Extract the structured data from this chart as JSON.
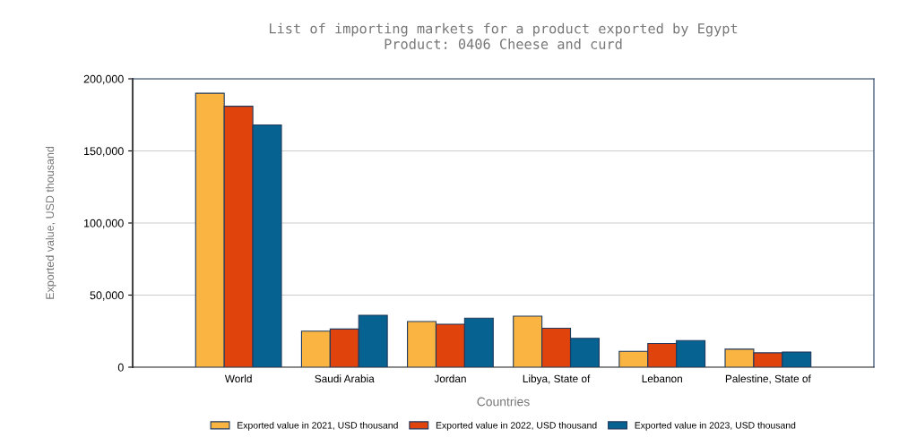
{
  "chart_data": {
    "type": "bar",
    "title": "List of importing markets for a product exported by Egypt\nProduct: 0406 Cheese and curd",
    "xlabel": "Countries",
    "ylabel": "Exported value, USD thousand",
    "categories": [
      "World",
      "Saudi Arabia",
      "Jordan",
      "Libya, State of",
      "Lebanon",
      "Palestine, State of"
    ],
    "series": [
      {
        "name": "Exported value in 2021, USD thousand",
        "color": "#fab442",
        "values": [
          190000,
          25000,
          31700,
          35400,
          11000,
          12500
        ]
      },
      {
        "name": "Exported value in 2022, USD thousand",
        "color": "#e0430c",
        "values": [
          181000,
          26500,
          29800,
          27000,
          16500,
          10000
        ]
      },
      {
        "name": "Exported value in 2023, USD thousand",
        "color": "#056291",
        "values": [
          168000,
          36000,
          34000,
          20000,
          18500,
          10500
        ]
      }
    ],
    "ylim": [
      0,
      200000
    ],
    "yticks": [
      {
        "value": 0,
        "label": "0"
      },
      {
        "value": 50000,
        "label": "50,000"
      },
      {
        "value": 100000,
        "label": "100,000"
      },
      {
        "value": 150000,
        "label": "150,000"
      },
      {
        "value": 200000,
        "label": "200,000"
      }
    ],
    "grid": "y",
    "legend": "bottom"
  }
}
